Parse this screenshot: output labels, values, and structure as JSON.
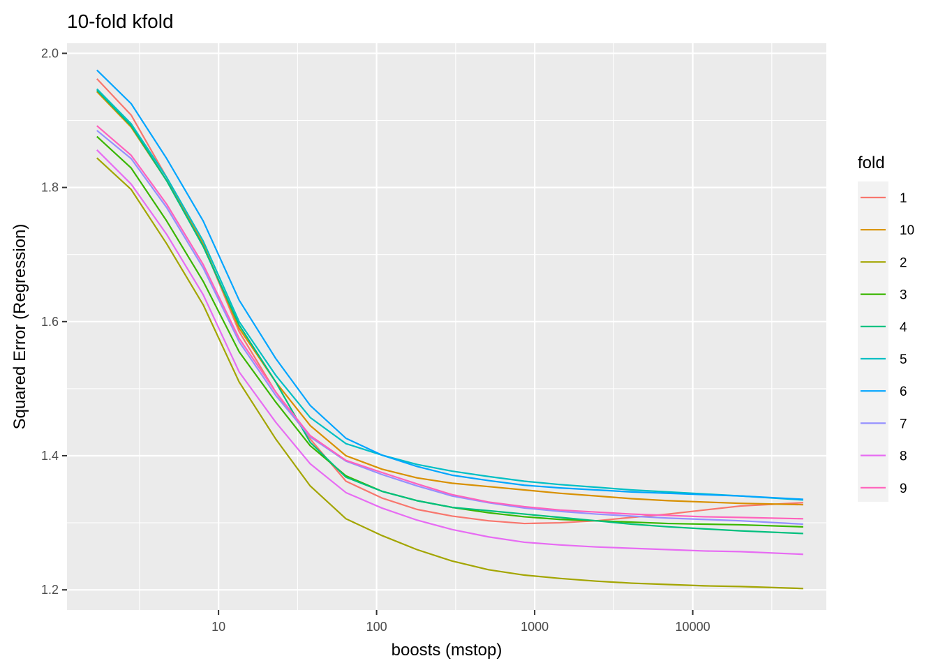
{
  "chart_data": {
    "type": "line",
    "title": "10-fold kfold",
    "xlabel": "boosts (mstop)",
    "ylabel": "Squared Error (Regression)",
    "x_scale": "log10",
    "xlim": [
      1.1,
      70000
    ],
    "ylim": [
      1.17,
      2.015
    ],
    "x_ticks": [
      10,
      100,
      1000,
      10000
    ],
    "x_tick_labels": [
      "10",
      "100",
      "1000",
      "10000"
    ],
    "y_ticks": [
      1.2,
      1.4,
      1.6,
      1.8,
      2.0
    ],
    "y_tick_labels": [
      "1.2",
      "1.4",
      "1.6",
      "1.8",
      "2.0"
    ],
    "grid": true,
    "legend": {
      "title": "fold",
      "position": "right"
    },
    "x": [
      1.7,
      2.8,
      4.7,
      8,
      13.5,
      23,
      38,
      64,
      108,
      180,
      300,
      510,
      860,
      1450,
      2450,
      4100,
      7000,
      11800,
      20000,
      50000
    ],
    "series": [
      {
        "name": "1",
        "color": "#F8766D",
        "values": [
          1.962,
          1.908,
          1.815,
          1.715,
          1.585,
          1.495,
          1.425,
          1.362,
          1.337,
          1.32,
          1.31,
          1.303,
          1.299,
          1.3,
          1.303,
          1.308,
          1.313,
          1.319,
          1.325,
          1.33
        ]
      },
      {
        "name": "10",
        "color": "#D89000",
        "values": [
          1.943,
          1.89,
          1.81,
          1.715,
          1.59,
          1.51,
          1.445,
          1.4,
          1.38,
          1.367,
          1.359,
          1.354,
          1.349,
          1.344,
          1.34,
          1.336,
          1.333,
          1.331,
          1.329,
          1.327
        ]
      },
      {
        "name": "2",
        "color": "#A3A500",
        "values": [
          1.844,
          1.797,
          1.716,
          1.625,
          1.51,
          1.425,
          1.355,
          1.306,
          1.281,
          1.26,
          1.243,
          1.23,
          1.222,
          1.217,
          1.213,
          1.21,
          1.208,
          1.206,
          1.205,
          1.202
        ]
      },
      {
        "name": "3",
        "color": "#39B600",
        "values": [
          1.876,
          1.829,
          1.75,
          1.66,
          1.555,
          1.48,
          1.415,
          1.37,
          1.347,
          1.333,
          1.323,
          1.315,
          1.309,
          1.305,
          1.303,
          1.301,
          1.299,
          1.298,
          1.297,
          1.294
        ]
      },
      {
        "name": "4",
        "color": "#00BF7D",
        "values": [
          1.945,
          1.892,
          1.81,
          1.712,
          1.595,
          1.51,
          1.42,
          1.368,
          1.347,
          1.333,
          1.323,
          1.318,
          1.313,
          1.308,
          1.303,
          1.298,
          1.294,
          1.291,
          1.288,
          1.284
        ]
      },
      {
        "name": "5",
        "color": "#00BFC4",
        "values": [
          1.947,
          1.895,
          1.815,
          1.72,
          1.6,
          1.52,
          1.457,
          1.418,
          1.401,
          1.387,
          1.377,
          1.369,
          1.362,
          1.357,
          1.353,
          1.349,
          1.346,
          1.343,
          1.34,
          1.334
        ]
      },
      {
        "name": "6",
        "color": "#00A5FF",
        "values": [
          1.975,
          1.925,
          1.843,
          1.75,
          1.632,
          1.545,
          1.475,
          1.426,
          1.401,
          1.384,
          1.371,
          1.363,
          1.356,
          1.352,
          1.349,
          1.346,
          1.344,
          1.342,
          1.34,
          1.335
        ]
      },
      {
        "name": "7",
        "color": "#9590FF",
        "values": [
          1.885,
          1.843,
          1.77,
          1.68,
          1.57,
          1.49,
          1.428,
          1.392,
          1.372,
          1.355,
          1.34,
          1.33,
          1.322,
          1.317,
          1.313,
          1.31,
          1.307,
          1.305,
          1.303,
          1.298
        ]
      },
      {
        "name": "8",
        "color": "#E76BF3",
        "values": [
          1.856,
          1.805,
          1.73,
          1.64,
          1.525,
          1.45,
          1.388,
          1.345,
          1.322,
          1.304,
          1.29,
          1.279,
          1.271,
          1.267,
          1.264,
          1.262,
          1.26,
          1.258,
          1.257,
          1.253
        ]
      },
      {
        "name": "9",
        "color": "#FF62BC",
        "values": [
          1.892,
          1.848,
          1.775,
          1.685,
          1.575,
          1.495,
          1.43,
          1.393,
          1.375,
          1.358,
          1.342,
          1.331,
          1.324,
          1.319,
          1.316,
          1.313,
          1.311,
          1.309,
          1.308,
          1.306
        ]
      }
    ]
  }
}
